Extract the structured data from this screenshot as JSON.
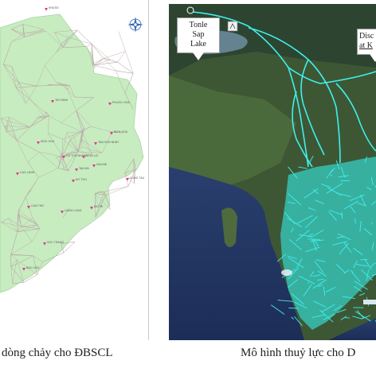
{
  "left_map": {
    "cities": [
      {
        "name": "KRATIE"
      },
      {
        "name": "TAY NINH"
      },
      {
        "name": "PHUOC HOA"
      },
      {
        "name": "MOC HOA"
      },
      {
        "name": "BIEN HOA"
      },
      {
        "name": "TAN SON NHAT"
      },
      {
        "name": "CU TCH NHON"
      },
      {
        "name": "BEN LUC"
      },
      {
        "name": "NHA BE"
      },
      {
        "name": "TAN AN"
      },
      {
        "name": "CAO LANH"
      },
      {
        "name": "MY THO"
      },
      {
        "name": "VUNG TAU"
      },
      {
        "name": "CAN THO"
      },
      {
        "name": "CANG LONG"
      },
      {
        "name": "BA TRI"
      },
      {
        "name": "SOC TRANG"
      },
      {
        "name": "BAC LIEU"
      }
    ],
    "compass": "compass-rose-icon",
    "land_color": "#c7ecc0",
    "network_color": "#b9a7a7",
    "city_color": "#e4348f"
  },
  "right_map": {
    "callouts": {
      "tonle": {
        "line1": "Tonle",
        "line2": "Sap",
        "line3": "Lake"
      },
      "discharge": {
        "line1": "Disc",
        "line2": "at K"
      }
    },
    "network_color": "#3ef0ee"
  },
  "captions": {
    "left": "dòng chảy cho ĐBSCL",
    "right": "Mô hình thuỷ lực cho D"
  }
}
